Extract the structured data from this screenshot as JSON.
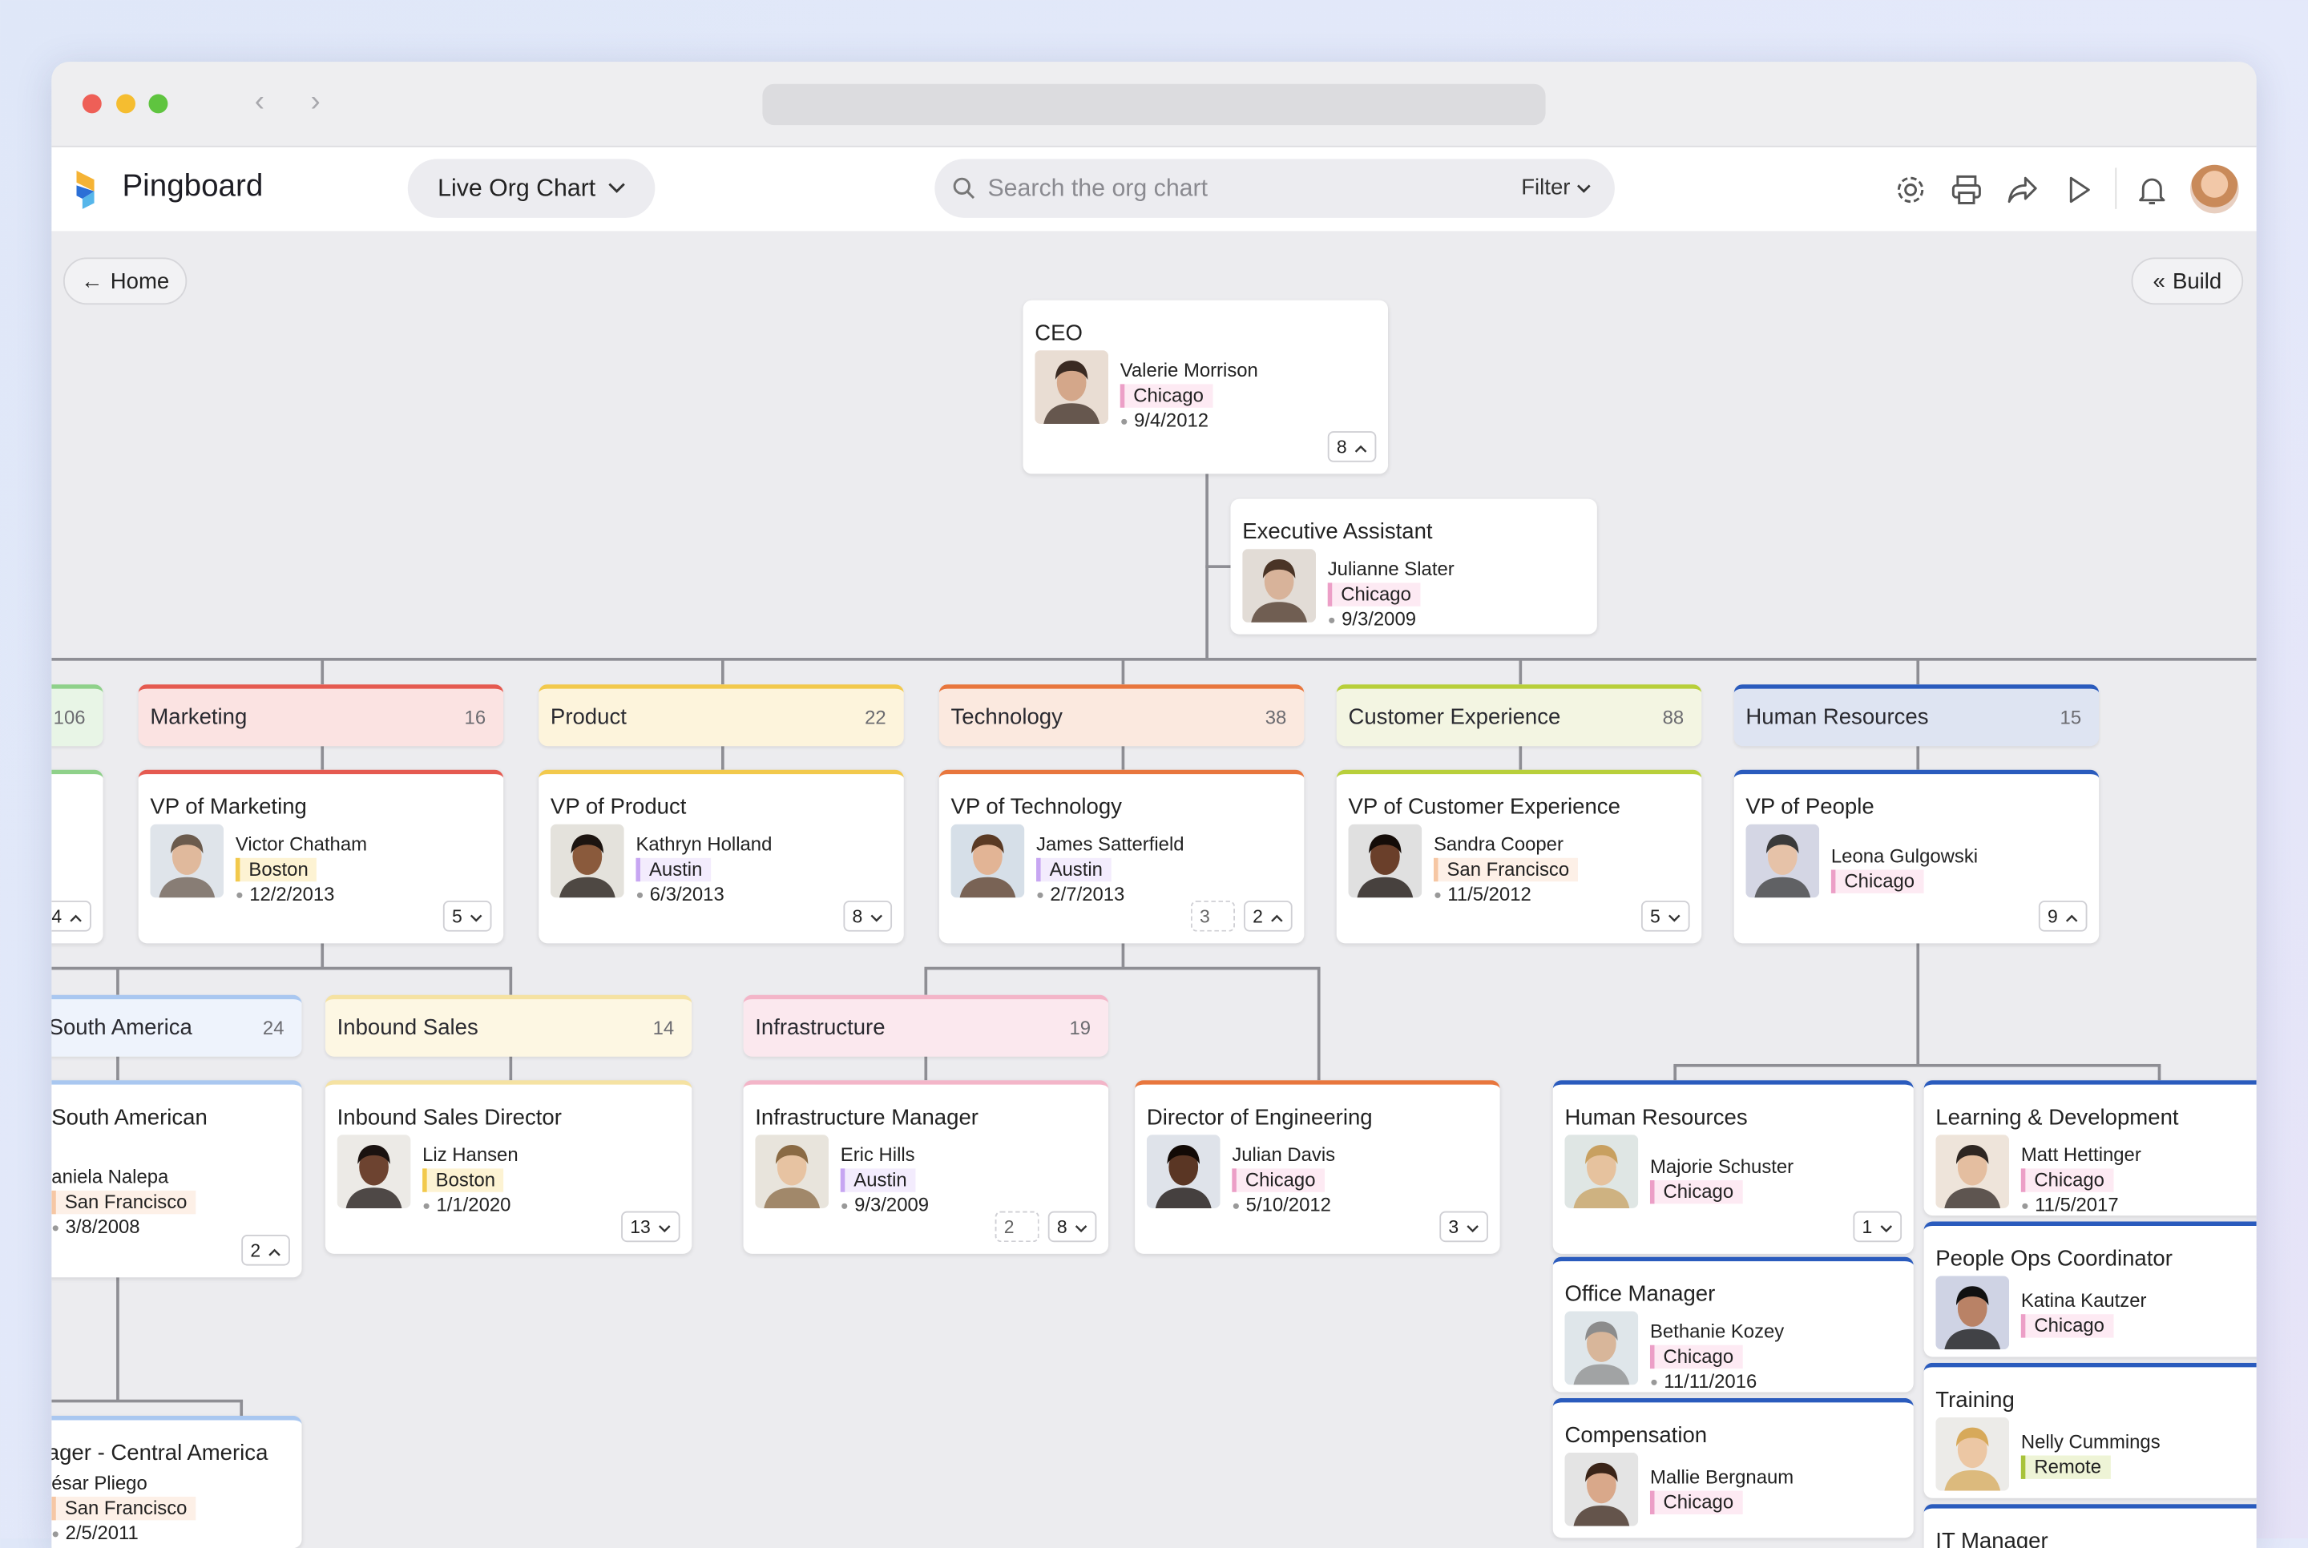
{
  "browser": {
    "back_icon": "chevron-left-icon",
    "forward_icon": "chevron-right-icon"
  },
  "header": {
    "brand": "Pingboard",
    "view_selector": "Live Org Chart",
    "search_placeholder": "Search the org chart",
    "filter_label": "Filter",
    "icons": [
      "gear-icon",
      "printer-icon",
      "share-icon",
      "play-icon",
      "bell-icon"
    ]
  },
  "toolbar": {
    "home_label": "Home",
    "build_label": "Build"
  },
  "location_colors": {
    "Chicago": {
      "bar": "#ec9fc7",
      "bg": "#fdeaf3"
    },
    "Boston": {
      "bar": "#f2c94c",
      "bg": "#fdf3d3"
    },
    "Austin": {
      "bar": "#c7a6f2",
      "bg": "#f3ecfd"
    },
    "San Francisco": {
      "bar": "#f6c7a4",
      "bg": "#fdf0e7"
    },
    "Remote": {
      "bar": "#a8c33a",
      "bg": "#eef4d6"
    }
  },
  "departments": [
    {
      "name": "",
      "count": "106",
      "accent": "#8fd18a",
      "bg": "#e8f5e6"
    },
    {
      "name": "Marketing",
      "count": "16",
      "accent": "#e55a50",
      "bg": "#fbe3e2"
    },
    {
      "name": "Product",
      "count": "22",
      "accent": "#f2c94c",
      "bg": "#fdf4dc"
    },
    {
      "name": "Technology",
      "count": "38",
      "accent": "#e8763d",
      "bg": "#fbe9df"
    },
    {
      "name": "Customer Experience",
      "count": "88",
      "accent": "#b8cf3a",
      "bg": "#f3f5e2"
    },
    {
      "name": "Human Resources",
      "count": "15",
      "accent": "#2a5bbd",
      "bg": "#dee4f2"
    },
    {
      "name": "South America",
      "count": "24",
      "accent": "#a9c7f0",
      "bg": "#eef3fc"
    },
    {
      "name": "Inbound Sales",
      "count": "14",
      "accent": "#f5e2a2",
      "bg": "#fdf7e3"
    },
    {
      "name": "Infrastructure",
      "count": "19",
      "accent": "#f3b5c8",
      "bg": "#fbe8ee"
    }
  ],
  "cards": [
    {
      "title": "CEO",
      "name": "Valerie Morrison",
      "location": "Chicago",
      "date": "9/4/2012",
      "badges": [
        {
          "text": "8",
          "icon": "chevron-up-icon"
        }
      ]
    },
    {
      "title": "Executive Assistant",
      "name": "Julianne Slater",
      "location": "Chicago",
      "date": "9/3/2009",
      "badges": []
    },
    {
      "title": "",
      "name": "",
      "location": "",
      "date": "",
      "badges": [
        {
          "text": "4",
          "icon": "chevron-up-icon"
        }
      ]
    },
    {
      "title": "VP of Marketing",
      "name": "Victor Chatham",
      "location": "Boston",
      "date": "12/2/2013",
      "badges": [
        {
          "text": "5",
          "icon": "chevron-down-icon"
        }
      ]
    },
    {
      "title": "VP of Product",
      "name": "Kathryn Holland",
      "location": "Austin",
      "date": "6/3/2013",
      "badges": [
        {
          "text": "8",
          "icon": "chevron-down-icon"
        }
      ]
    },
    {
      "title": "VP of Technology",
      "name": "James Satterfield",
      "location": "Austin",
      "date": "2/7/2013",
      "badges": [
        {
          "text": "3",
          "style": "dashed"
        },
        {
          "text": "2",
          "icon": "chevron-up-icon"
        }
      ]
    },
    {
      "title": "VP of Customer Experience",
      "name": "Sandra Cooper",
      "location": "San Francisco",
      "date": "11/5/2012",
      "badges": [
        {
          "text": "5",
          "icon": "chevron-down-icon"
        }
      ]
    },
    {
      "title": "VP of People",
      "name": "Leona Gulgowski",
      "location": "Chicago",
      "date": "",
      "badges": [
        {
          "text": "9",
          "icon": "chevron-up-icon"
        }
      ]
    },
    {
      "title": "South American",
      "name": "aniela Nalepa",
      "location": "San Francisco",
      "date": "3/8/2008",
      "badges": [
        {
          "text": "2",
          "icon": "chevron-up-icon"
        }
      ]
    },
    {
      "title": "Inbound Sales Director",
      "name": "Liz Hansen",
      "location": "Boston",
      "date": "1/1/2020",
      "badges": [
        {
          "text": "13",
          "icon": "chevron-down-icon"
        }
      ]
    },
    {
      "title": "Infrastructure Manager",
      "name": "Eric Hills",
      "location": "Austin",
      "date": "9/3/2009",
      "badges": [
        {
          "text": "2",
          "style": "dashed"
        },
        {
          "text": "8",
          "icon": "chevron-down-icon"
        }
      ]
    },
    {
      "title": "Director of Engineering",
      "name": "Julian Davis",
      "location": "Chicago",
      "date": "5/10/2012",
      "badges": [
        {
          "text": "3",
          "icon": "chevron-down-icon"
        }
      ]
    },
    {
      "title": "Human Resources",
      "name": "Majorie Schuster",
      "location": "Chicago",
      "date": "",
      "badges": [
        {
          "text": "1",
          "icon": "chevron-down-icon"
        }
      ]
    },
    {
      "title": "Office Manager",
      "name": "Bethanie Kozey",
      "location": "Chicago",
      "date": "11/11/2016",
      "badges": []
    },
    {
      "title": "Compensation",
      "name": "Mallie Bergnaum",
      "location": "Chicago",
      "date": "",
      "badges": []
    },
    {
      "title": "Learning & Development",
      "name": "Matt Hettinger",
      "location": "Chicago",
      "date": "11/5/2017",
      "badges": []
    },
    {
      "title": "People Ops Coordinator",
      "name": "Katina Kautzer",
      "location": "Chicago",
      "date": "",
      "badges": []
    },
    {
      "title": "Training",
      "name": "Nelly Cummings",
      "location": "Remote",
      "date": "",
      "badges": []
    },
    {
      "title": "IT Manager",
      "name": "",
      "location": "",
      "date": "",
      "badges": []
    },
    {
      "title": "ager - Central America",
      "name": "ésar Pliego",
      "location": "San Francisco",
      "date": "2/5/2011",
      "badges": []
    }
  ]
}
